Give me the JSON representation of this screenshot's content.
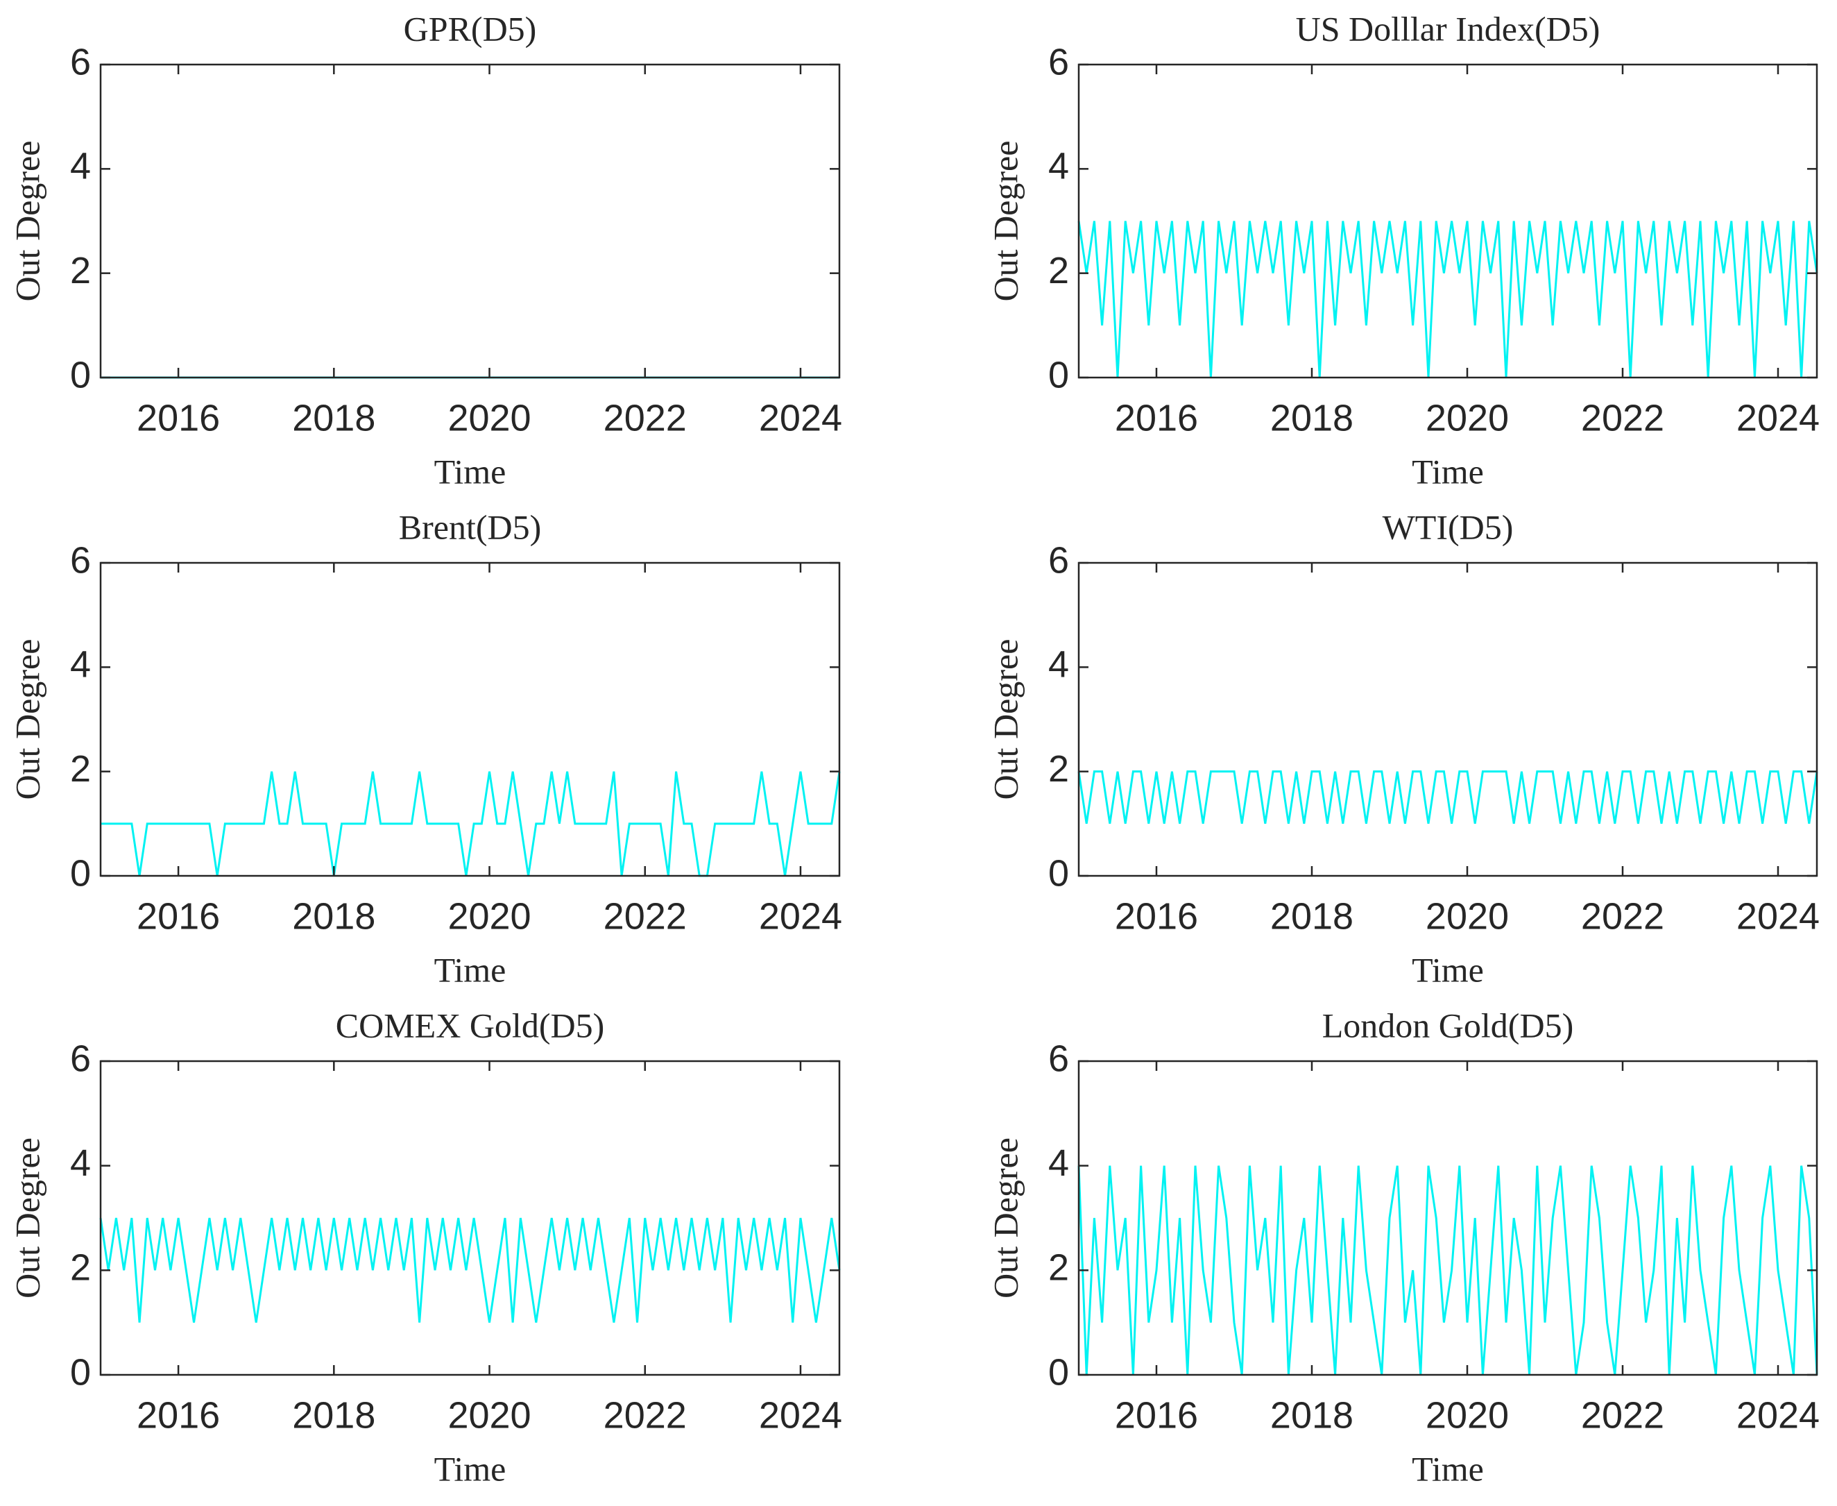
{
  "chart_data": [
    {
      "type": "line",
      "title": "GPR(D5)",
      "xlabel": "Time",
      "ylabel": "Out Degree",
      "color": "#00f2f2",
      "xlim": [
        2015,
        2024.5
      ],
      "ylim": [
        0,
        6
      ],
      "xticks": [
        2016,
        2018,
        2020,
        2022,
        2024
      ],
      "yticks": [
        0,
        2,
        4,
        6
      ],
      "x": [
        2015,
        2015.1,
        2015.2,
        2015.3,
        2015.4,
        2015.5,
        2015.6,
        2015.7,
        2015.8,
        2015.9,
        2016,
        2016.1,
        2016.2,
        2016.3,
        2016.4,
        2016.5,
        2016.6,
        2016.7,
        2016.8,
        2016.9,
        2017,
        2017.1,
        2017.2,
        2017.3,
        2017.4,
        2017.5,
        2017.6,
        2017.7,
        2017.8,
        2017.9,
        2018,
        2018.1,
        2018.2,
        2018.3,
        2018.4,
        2018.5,
        2018.6,
        2018.7,
        2018.8,
        2018.9,
        2019,
        2019.1,
        2019.2,
        2019.3,
        2019.4,
        2019.5,
        2019.6,
        2019.7,
        2019.8,
        2019.9,
        2020,
        2020.1,
        2020.2,
        2020.3,
        2020.4,
        2020.5,
        2020.6,
        2020.7,
        2020.8,
        2020.9,
        2021,
        2021.1,
        2021.2,
        2021.3,
        2021.4,
        2021.5,
        2021.6,
        2021.7,
        2021.8,
        2021.9,
        2022,
        2022.1,
        2022.2,
        2022.3,
        2022.4,
        2022.5,
        2022.6,
        2022.7,
        2022.8,
        2022.9,
        2023,
        2023.1,
        2023.2,
        2023.3,
        2023.4,
        2023.5,
        2023.6,
        2023.7,
        2023.8,
        2023.9,
        2024,
        2024.1,
        2024.2,
        2024.3,
        2024.4,
        2024.5
      ],
      "values": [
        0,
        0,
        0,
        0,
        0,
        0,
        0,
        0,
        0,
        0,
        0,
        0,
        0,
        0,
        0,
        0,
        0,
        0,
        0,
        0,
        0,
        0,
        0,
        0,
        0,
        0,
        0,
        0,
        0,
        0,
        0,
        0,
        0,
        0,
        0,
        0,
        0,
        0,
        0,
        0,
        0,
        0,
        0,
        0,
        0,
        0,
        0,
        0,
        0,
        0,
        0,
        0,
        0,
        0,
        0,
        0,
        0,
        0,
        0,
        0,
        0,
        0,
        0,
        0,
        0,
        0,
        0,
        0,
        0,
        0,
        0,
        0,
        0,
        0,
        0,
        0,
        0,
        0,
        0,
        0,
        0,
        0,
        0,
        0,
        0,
        0,
        0,
        0,
        0,
        0,
        0,
        0,
        0,
        0,
        0,
        0
      ]
    },
    {
      "type": "line",
      "title": "US Dolllar Index(D5)",
      "xlabel": "Time",
      "ylabel": "Out Degree",
      "color": "#00f2f2",
      "xlim": [
        2015,
        2024.5
      ],
      "ylim": [
        0,
        6
      ],
      "xticks": [
        2016,
        2018,
        2020,
        2022,
        2024
      ],
      "yticks": [
        0,
        2,
        4,
        6
      ],
      "x": [
        2015,
        2015.1,
        2015.2,
        2015.3,
        2015.4,
        2015.5,
        2015.6,
        2015.7,
        2015.8,
        2015.9,
        2016,
        2016.1,
        2016.2,
        2016.3,
        2016.4,
        2016.5,
        2016.6,
        2016.7,
        2016.8,
        2016.9,
        2017,
        2017.1,
        2017.2,
        2017.3,
        2017.4,
        2017.5,
        2017.6,
        2017.7,
        2017.8,
        2017.9,
        2018,
        2018.1,
        2018.2,
        2018.3,
        2018.4,
        2018.5,
        2018.6,
        2018.7,
        2018.8,
        2018.9,
        2019,
        2019.1,
        2019.2,
        2019.3,
        2019.4,
        2019.5,
        2019.6,
        2019.7,
        2019.8,
        2019.9,
        2020,
        2020.1,
        2020.2,
        2020.3,
        2020.4,
        2020.5,
        2020.6,
        2020.7,
        2020.8,
        2020.9,
        2021,
        2021.1,
        2021.2,
        2021.3,
        2021.4,
        2021.5,
        2021.6,
        2021.7,
        2021.8,
        2021.9,
        2022,
        2022.1,
        2022.2,
        2022.3,
        2022.4,
        2022.5,
        2022.6,
        2022.7,
        2022.8,
        2022.9,
        2023,
        2023.1,
        2023.2,
        2023.3,
        2023.4,
        2023.5,
        2023.6,
        2023.7,
        2023.8,
        2023.9,
        2024,
        2024.1,
        2024.2,
        2024.3,
        2024.4,
        2024.5
      ],
      "values": [
        3,
        2,
        3,
        1,
        3,
        0,
        3,
        2,
        3,
        1,
        3,
        2,
        3,
        1,
        3,
        2,
        3,
        0,
        3,
        2,
        3,
        1,
        3,
        2,
        3,
        2,
        3,
        1,
        3,
        2,
        3,
        0,
        3,
        1,
        3,
        2,
        3,
        1,
        3,
        2,
        3,
        2,
        3,
        1,
        3,
        0,
        3,
        2,
        3,
        2,
        3,
        1,
        3,
        2,
        3,
        0,
        3,
        1,
        3,
        2,
        3,
        1,
        3,
        2,
        3,
        2,
        3,
        1,
        3,
        2,
        3,
        0,
        3,
        2,
        3,
        1,
        3,
        2,
        3,
        1,
        3,
        0,
        3,
        2,
        3,
        1,
        3,
        0,
        3,
        2,
        3,
        1,
        3,
        0,
        3,
        2
      ]
    },
    {
      "type": "line",
      "title": "Brent(D5)",
      "xlabel": "Time",
      "ylabel": "Out Degree",
      "color": "#00f2f2",
      "xlim": [
        2015,
        2024.5
      ],
      "ylim": [
        0,
        6
      ],
      "xticks": [
        2016,
        2018,
        2020,
        2022,
        2024
      ],
      "yticks": [
        0,
        2,
        4,
        6
      ],
      "x": [
        2015,
        2015.1,
        2015.2,
        2015.3,
        2015.4,
        2015.5,
        2015.6,
        2015.7,
        2015.8,
        2015.9,
        2016,
        2016.1,
        2016.2,
        2016.3,
        2016.4,
        2016.5,
        2016.6,
        2016.7,
        2016.8,
        2016.9,
        2017,
        2017.1,
        2017.2,
        2017.3,
        2017.4,
        2017.5,
        2017.6,
        2017.7,
        2017.8,
        2017.9,
        2018,
        2018.1,
        2018.2,
        2018.3,
        2018.4,
        2018.5,
        2018.6,
        2018.7,
        2018.8,
        2018.9,
        2019,
        2019.1,
        2019.2,
        2019.3,
        2019.4,
        2019.5,
        2019.6,
        2019.7,
        2019.8,
        2019.9,
        2020,
        2020.1,
        2020.2,
        2020.3,
        2020.4,
        2020.5,
        2020.6,
        2020.7,
        2020.8,
        2020.9,
        2021,
        2021.1,
        2021.2,
        2021.3,
        2021.4,
        2021.5,
        2021.6,
        2021.7,
        2021.8,
        2021.9,
        2022,
        2022.1,
        2022.2,
        2022.3,
        2022.4,
        2022.5,
        2022.6,
        2022.7,
        2022.8,
        2022.9,
        2023,
        2023.1,
        2023.2,
        2023.3,
        2023.4,
        2023.5,
        2023.6,
        2023.7,
        2023.8,
        2023.9,
        2024,
        2024.1,
        2024.2,
        2024.3,
        2024.4,
        2024.5
      ],
      "values": [
        1,
        1,
        1,
        1,
        1,
        0,
        1,
        1,
        1,
        1,
        1,
        1,
        1,
        1,
        1,
        0,
        1,
        1,
        1,
        1,
        1,
        1,
        2,
        1,
        1,
        2,
        1,
        1,
        1,
        1,
        0,
        1,
        1,
        1,
        1,
        2,
        1,
        1,
        1,
        1,
        1,
        2,
        1,
        1,
        1,
        1,
        1,
        0,
        1,
        1,
        2,
        1,
        1,
        2,
        1,
        0,
        1,
        1,
        2,
        1,
        2,
        1,
        1,
        1,
        1,
        1,
        2,
        0,
        1,
        1,
        1,
        1,
        1,
        0,
        2,
        1,
        1,
        0,
        0,
        1,
        1,
        1,
        1,
        1,
        1,
        2,
        1,
        1,
        0,
        1,
        2,
        1,
        1,
        1,
        1,
        2
      ]
    },
    {
      "type": "line",
      "title": "WTI(D5)",
      "xlabel": "Time",
      "ylabel": "Out Degree",
      "color": "#00f2f2",
      "xlim": [
        2015,
        2024.5
      ],
      "ylim": [
        0,
        6
      ],
      "xticks": [
        2016,
        2018,
        2020,
        2022,
        2024
      ],
      "yticks": [
        0,
        2,
        4,
        6
      ],
      "x": [
        2015,
        2015.1,
        2015.2,
        2015.3,
        2015.4,
        2015.5,
        2015.6,
        2015.7,
        2015.8,
        2015.9,
        2016,
        2016.1,
        2016.2,
        2016.3,
        2016.4,
        2016.5,
        2016.6,
        2016.7,
        2016.8,
        2016.9,
        2017,
        2017.1,
        2017.2,
        2017.3,
        2017.4,
        2017.5,
        2017.6,
        2017.7,
        2017.8,
        2017.9,
        2018,
        2018.1,
        2018.2,
        2018.3,
        2018.4,
        2018.5,
        2018.6,
        2018.7,
        2018.8,
        2018.9,
        2019,
        2019.1,
        2019.2,
        2019.3,
        2019.4,
        2019.5,
        2019.6,
        2019.7,
        2019.8,
        2019.9,
        2020,
        2020.1,
        2020.2,
        2020.3,
        2020.4,
        2020.5,
        2020.6,
        2020.7,
        2020.8,
        2020.9,
        2021,
        2021.1,
        2021.2,
        2021.3,
        2021.4,
        2021.5,
        2021.6,
        2021.7,
        2021.8,
        2021.9,
        2022,
        2022.1,
        2022.2,
        2022.3,
        2022.4,
        2022.5,
        2022.6,
        2022.7,
        2022.8,
        2022.9,
        2023,
        2023.1,
        2023.2,
        2023.3,
        2023.4,
        2023.5,
        2023.6,
        2023.7,
        2023.8,
        2023.9,
        2024,
        2024.1,
        2024.2,
        2024.3,
        2024.4,
        2024.5
      ],
      "values": [
        2,
        1,
        2,
        2,
        1,
        2,
        1,
        2,
        2,
        1,
        2,
        1,
        2,
        1,
        2,
        2,
        1,
        2,
        2,
        2,
        2,
        1,
        2,
        2,
        1,
        2,
        2,
        1,
        2,
        1,
        2,
        2,
        1,
        2,
        1,
        2,
        2,
        1,
        2,
        2,
        1,
        2,
        1,
        2,
        2,
        1,
        2,
        2,
        1,
        2,
        2,
        1,
        2,
        2,
        2,
        2,
        1,
        2,
        1,
        2,
        2,
        2,
        1,
        2,
        1,
        2,
        2,
        1,
        2,
        1,
        2,
        2,
        1,
        2,
        2,
        1,
        2,
        1,
        2,
        2,
        1,
        2,
        2,
        1,
        2,
        1,
        2,
        2,
        1,
        2,
        2,
        1,
        2,
        2,
        1,
        2
      ]
    },
    {
      "type": "line",
      "title": "COMEX Gold(D5)",
      "xlabel": "Time",
      "ylabel": "Out Degree",
      "color": "#00f2f2",
      "xlim": [
        2015,
        2024.5
      ],
      "ylim": [
        0,
        6
      ],
      "xticks": [
        2016,
        2018,
        2020,
        2022,
        2024
      ],
      "yticks": [
        0,
        2,
        4,
        6
      ],
      "x": [
        2015,
        2015.1,
        2015.2,
        2015.3,
        2015.4,
        2015.5,
        2015.6,
        2015.7,
        2015.8,
        2015.9,
        2016,
        2016.1,
        2016.2,
        2016.3,
        2016.4,
        2016.5,
        2016.6,
        2016.7,
        2016.8,
        2016.9,
        2017,
        2017.1,
        2017.2,
        2017.3,
        2017.4,
        2017.5,
        2017.6,
        2017.7,
        2017.8,
        2017.9,
        2018,
        2018.1,
        2018.2,
        2018.3,
        2018.4,
        2018.5,
        2018.6,
        2018.7,
        2018.8,
        2018.9,
        2019,
        2019.1,
        2019.2,
        2019.3,
        2019.4,
        2019.5,
        2019.6,
        2019.7,
        2019.8,
        2019.9,
        2020,
        2020.1,
        2020.2,
        2020.3,
        2020.4,
        2020.5,
        2020.6,
        2020.7,
        2020.8,
        2020.9,
        2021,
        2021.1,
        2021.2,
        2021.3,
        2021.4,
        2021.5,
        2021.6,
        2021.7,
        2021.8,
        2021.9,
        2022,
        2022.1,
        2022.2,
        2022.3,
        2022.4,
        2022.5,
        2022.6,
        2022.7,
        2022.8,
        2022.9,
        2023,
        2023.1,
        2023.2,
        2023.3,
        2023.4,
        2023.5,
        2023.6,
        2023.7,
        2023.8,
        2023.9,
        2024,
        2024.1,
        2024.2,
        2024.3,
        2024.4,
        2024.5
      ],
      "values": [
        3,
        2,
        3,
        2,
        3,
        1,
        3,
        2,
        3,
        2,
        3,
        2,
        1,
        2,
        3,
        2,
        3,
        2,
        3,
        2,
        1,
        2,
        3,
        2,
        3,
        2,
        3,
        2,
        3,
        2,
        3,
        2,
        3,
        2,
        3,
        2,
        3,
        2,
        3,
        2,
        3,
        1,
        3,
        2,
        3,
        2,
        3,
        2,
        3,
        2,
        1,
        2,
        3,
        1,
        3,
        2,
        1,
        2,
        3,
        2,
        3,
        2,
        3,
        2,
        3,
        2,
        1,
        2,
        3,
        1,
        3,
        2,
        3,
        2,
        3,
        2,
        3,
        2,
        3,
        2,
        3,
        1,
        3,
        2,
        3,
        2,
        3,
        2,
        3,
        1,
        3,
        2,
        1,
        2,
        3,
        2
      ]
    },
    {
      "type": "line",
      "title": "London Gold(D5)",
      "xlabel": "Time",
      "ylabel": "Out Degree",
      "color": "#00f2f2",
      "xlim": [
        2015,
        2024.5
      ],
      "ylim": [
        0,
        6
      ],
      "xticks": [
        2016,
        2018,
        2020,
        2022,
        2024
      ],
      "yticks": [
        0,
        2,
        4,
        6
      ],
      "x": [
        2015,
        2015.1,
        2015.2,
        2015.3,
        2015.4,
        2015.5,
        2015.6,
        2015.7,
        2015.8,
        2015.9,
        2016,
        2016.1,
        2016.2,
        2016.3,
        2016.4,
        2016.5,
        2016.6,
        2016.7,
        2016.8,
        2016.9,
        2017,
        2017.1,
        2017.2,
        2017.3,
        2017.4,
        2017.5,
        2017.6,
        2017.7,
        2017.8,
        2017.9,
        2018,
        2018.1,
        2018.2,
        2018.3,
        2018.4,
        2018.5,
        2018.6,
        2018.7,
        2018.8,
        2018.9,
        2019,
        2019.1,
        2019.2,
        2019.3,
        2019.4,
        2019.5,
        2019.6,
        2019.7,
        2019.8,
        2019.9,
        2020,
        2020.1,
        2020.2,
        2020.3,
        2020.4,
        2020.5,
        2020.6,
        2020.7,
        2020.8,
        2020.9,
        2021,
        2021.1,
        2021.2,
        2021.3,
        2021.4,
        2021.5,
        2021.6,
        2021.7,
        2021.8,
        2021.9,
        2022,
        2022.1,
        2022.2,
        2022.3,
        2022.4,
        2022.5,
        2022.6,
        2022.7,
        2022.8,
        2022.9,
        2023,
        2023.1,
        2023.2,
        2023.3,
        2023.4,
        2023.5,
        2023.6,
        2023.7,
        2023.8,
        2023.9,
        2024,
        2024.1,
        2024.2,
        2024.3,
        2024.4,
        2024.5
      ],
      "values": [
        4,
        0,
        3,
        1,
        4,
        2,
        3,
        0,
        4,
        1,
        2,
        4,
        1,
        3,
        0,
        4,
        2,
        1,
        4,
        3,
        1,
        0,
        4,
        2,
        3,
        1,
        4,
        0,
        2,
        3,
        1,
        4,
        2,
        0,
        3,
        1,
        4,
        2,
        1,
        0,
        3,
        4,
        1,
        2,
        0,
        4,
        3,
        1,
        2,
        4,
        1,
        3,
        0,
        2,
        4,
        1,
        3,
        2,
        0,
        4,
        1,
        3,
        4,
        2,
        0,
        1,
        4,
        3,
        1,
        0,
        2,
        4,
        3,
        1,
        2,
        4,
        0,
        3,
        1,
        4,
        2,
        1,
        0,
        3,
        4,
        2,
        1,
        0,
        3,
        4,
        2,
        1,
        0,
        4,
        3,
        0
      ]
    }
  ]
}
